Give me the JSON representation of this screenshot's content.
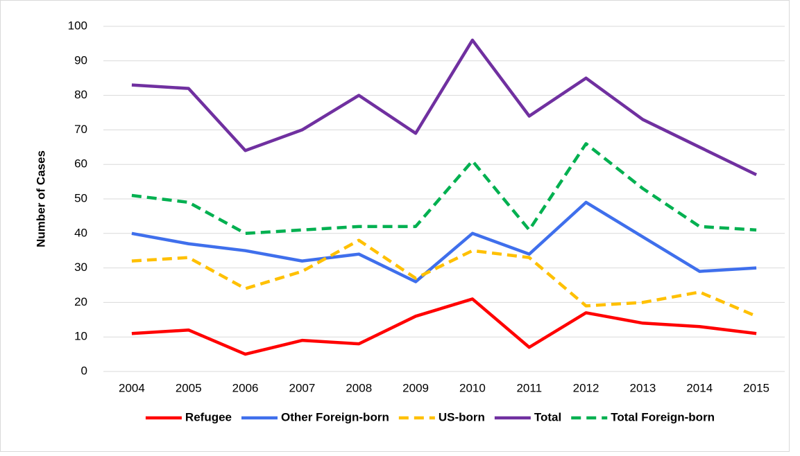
{
  "chart_data": {
    "type": "line",
    "y_label": "Number of Cases",
    "categories": [
      "2004",
      "2005",
      "2006",
      "2007",
      "2008",
      "2009",
      "2010",
      "2011",
      "2012",
      "2013",
      "2014",
      "2015"
    ],
    "series": [
      {
        "name": "Refugee",
        "color": "#ff0000",
        "dashed": false,
        "values": [
          11,
          12,
          5,
          9,
          8,
          16,
          21,
          7,
          17,
          14,
          13,
          11
        ]
      },
      {
        "name": "Other Foreign-born",
        "color": "#3f6fec",
        "dashed": false,
        "values": [
          40,
          37,
          35,
          32,
          34,
          26,
          40,
          34,
          49,
          39,
          29,
          30
        ]
      },
      {
        "name": "US-born",
        "color": "#ffc000",
        "dashed": true,
        "values": [
          32,
          33,
          24,
          29,
          38,
          27,
          35,
          33,
          19,
          20,
          23,
          16
        ]
      },
      {
        "name": "Total",
        "color": "#7030a0",
        "dashed": false,
        "values": [
          83,
          82,
          64,
          70,
          80,
          69,
          96,
          74,
          85,
          73,
          65,
          57
        ]
      },
      {
        "name": "Total Foreign-born",
        "color": "#00b050",
        "dashed": true,
        "values": [
          51,
          49,
          40,
          41,
          42,
          42,
          61,
          41,
          66,
          53,
          42,
          41
        ]
      }
    ],
    "ylim": [
      0,
      100
    ],
    "yticks": [
      0,
      10,
      20,
      30,
      40,
      50,
      60,
      70,
      80,
      90,
      100
    ],
    "grid": true,
    "legend": "bottom"
  }
}
